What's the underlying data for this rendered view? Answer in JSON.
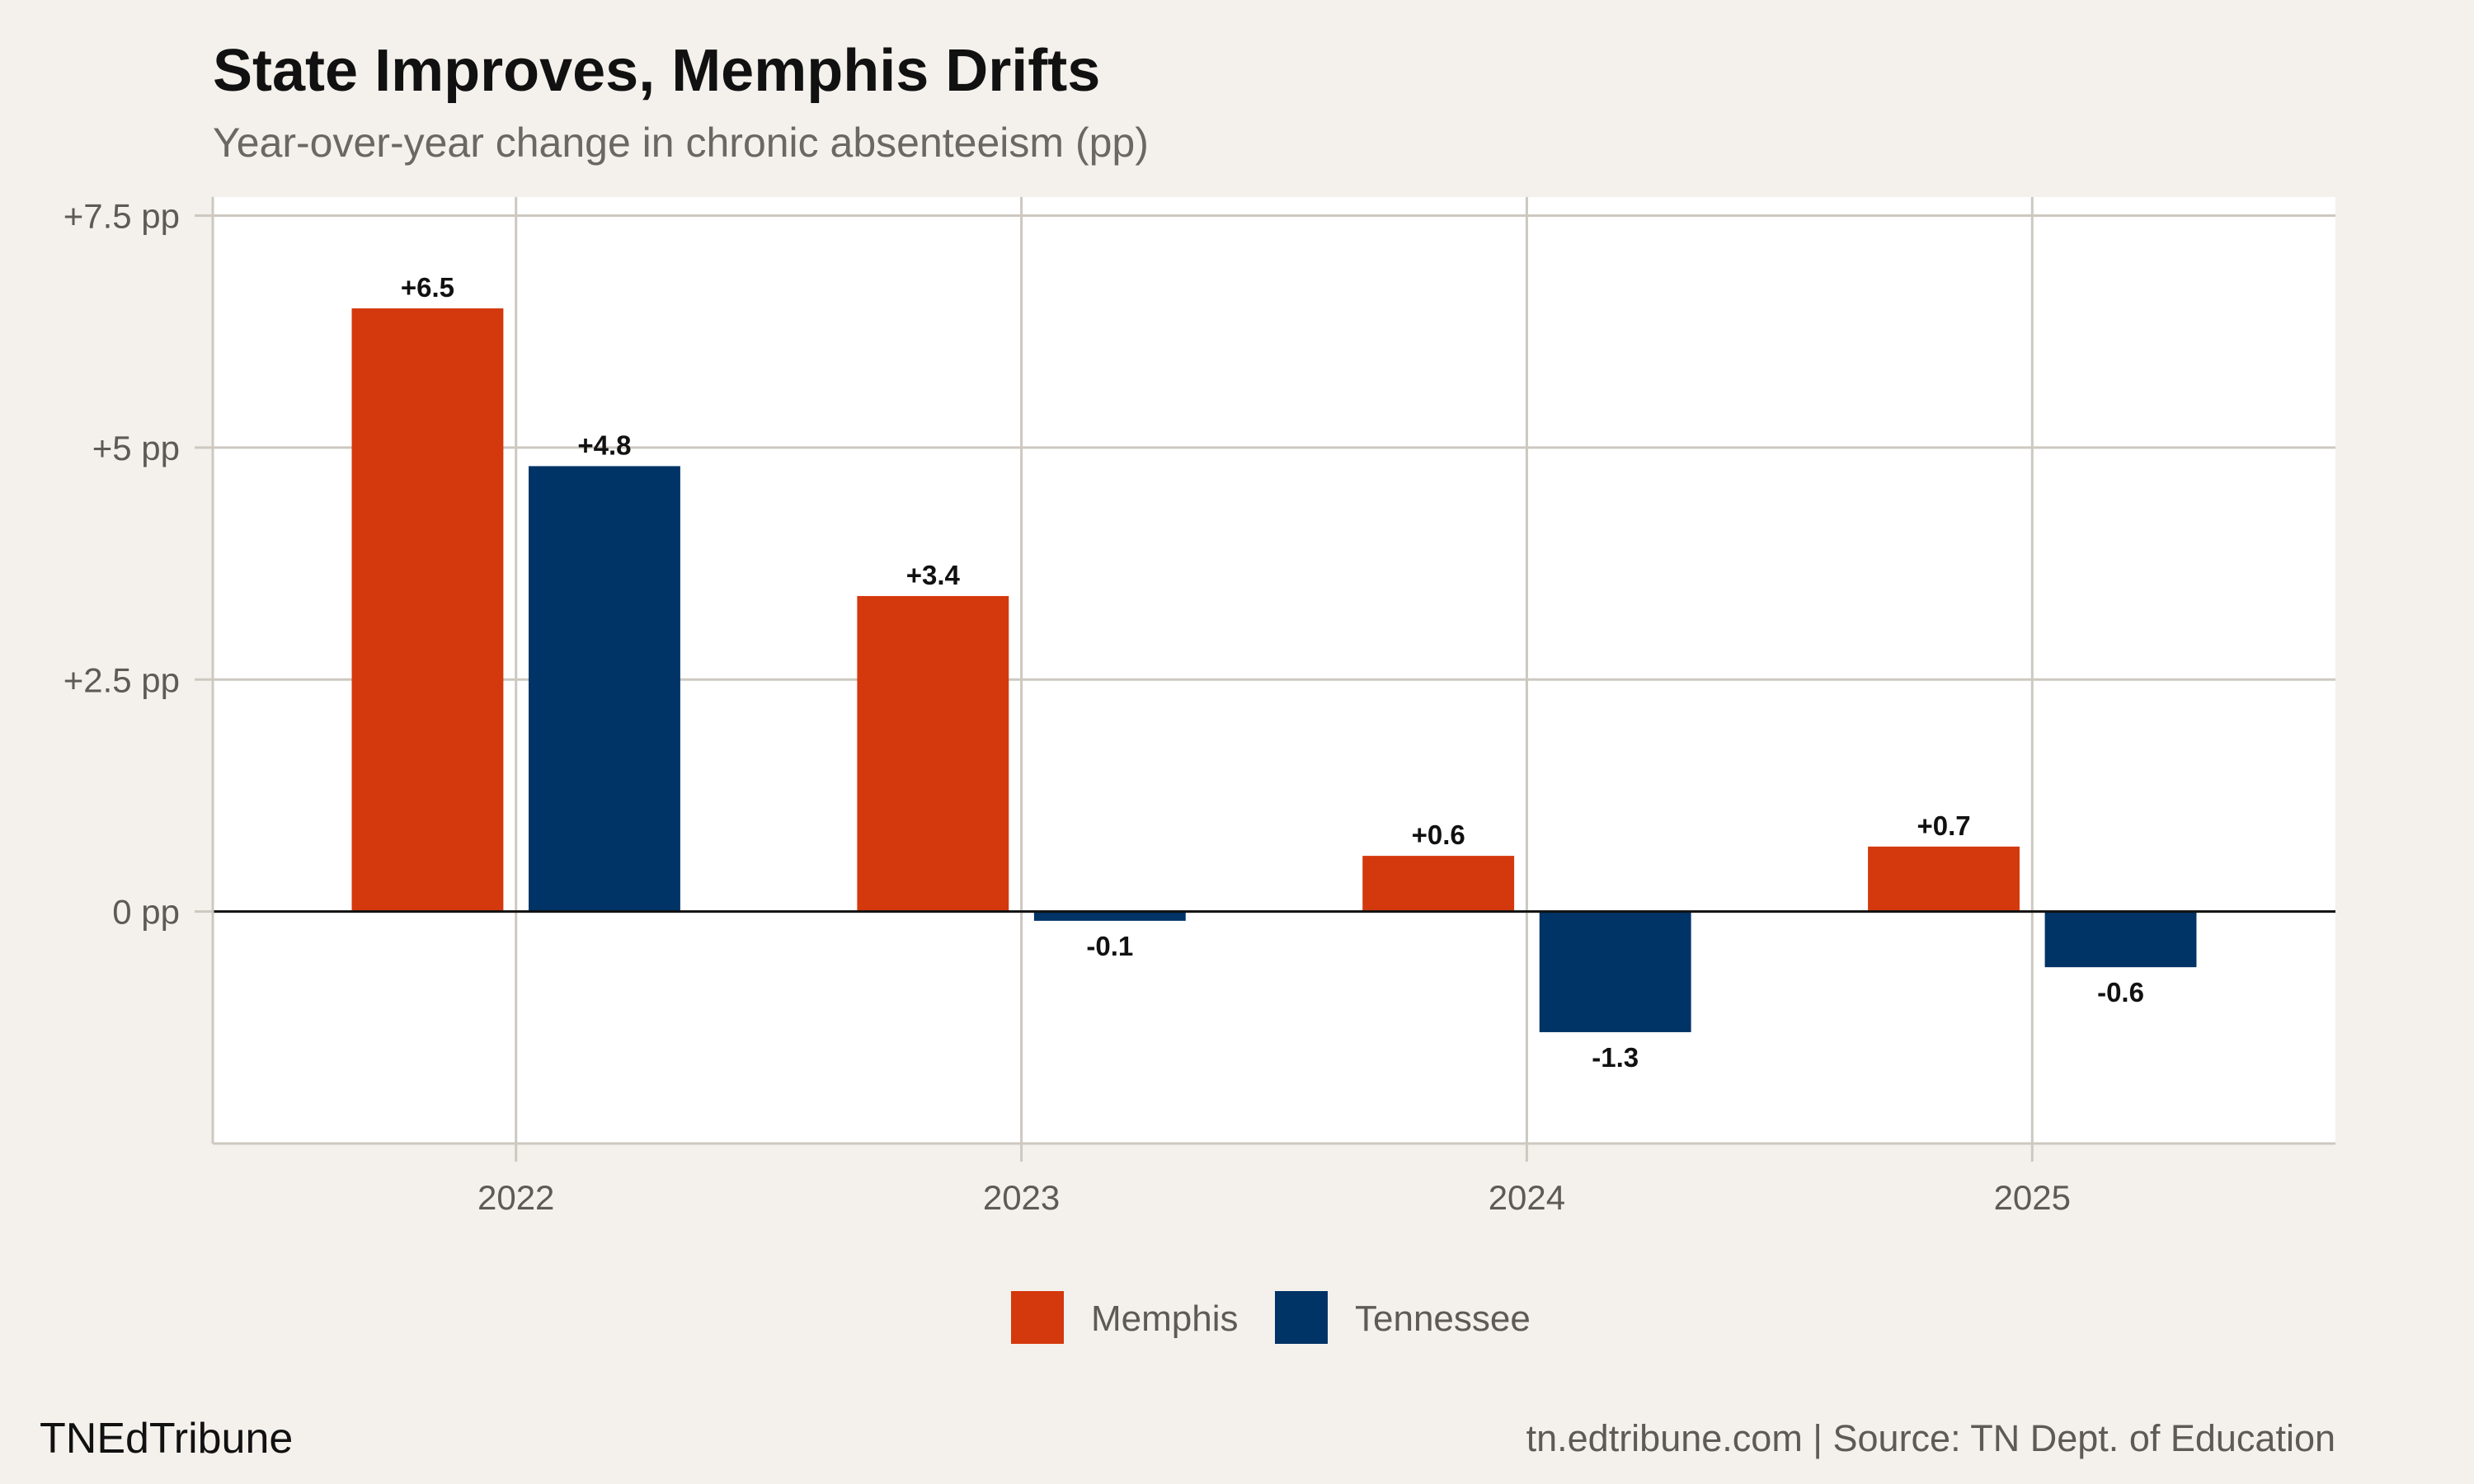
{
  "chart_data": {
    "type": "bar",
    "title": "State Improves, Memphis Drifts",
    "subtitle": "Year-over-year change in chronic absenteeism (pp)",
    "categories": [
      "2022",
      "2023",
      "2024",
      "2025"
    ],
    "series": [
      {
        "name": "Memphis",
        "color": "#d4380d",
        "values": [
          6.5,
          3.4,
          0.6,
          0.7
        ],
        "labels": [
          "+6.5",
          "+3.4",
          "+0.6",
          "+0.7"
        ]
      },
      {
        "name": "Tennessee",
        "color": "#003366",
        "values": [
          4.8,
          -0.1,
          -1.3,
          -0.6
        ],
        "labels": [
          "+4.8",
          "-0.1",
          "-1.3",
          "-0.6"
        ]
      }
    ],
    "yticks": [
      7.5,
      5,
      2.5,
      0
    ],
    "ytick_labels": [
      "+7.5 pp",
      "+5 pp",
      "+2.5 pp",
      "0 pp"
    ],
    "ylim": [
      -2.5,
      7.7
    ],
    "xlabel": "",
    "ylabel": "",
    "grid": true,
    "legend_position": "bottom"
  },
  "footer": {
    "brand": "TNEdTribune",
    "source": "tn.edtribune.com | Source: TN Dept. of Education"
  }
}
